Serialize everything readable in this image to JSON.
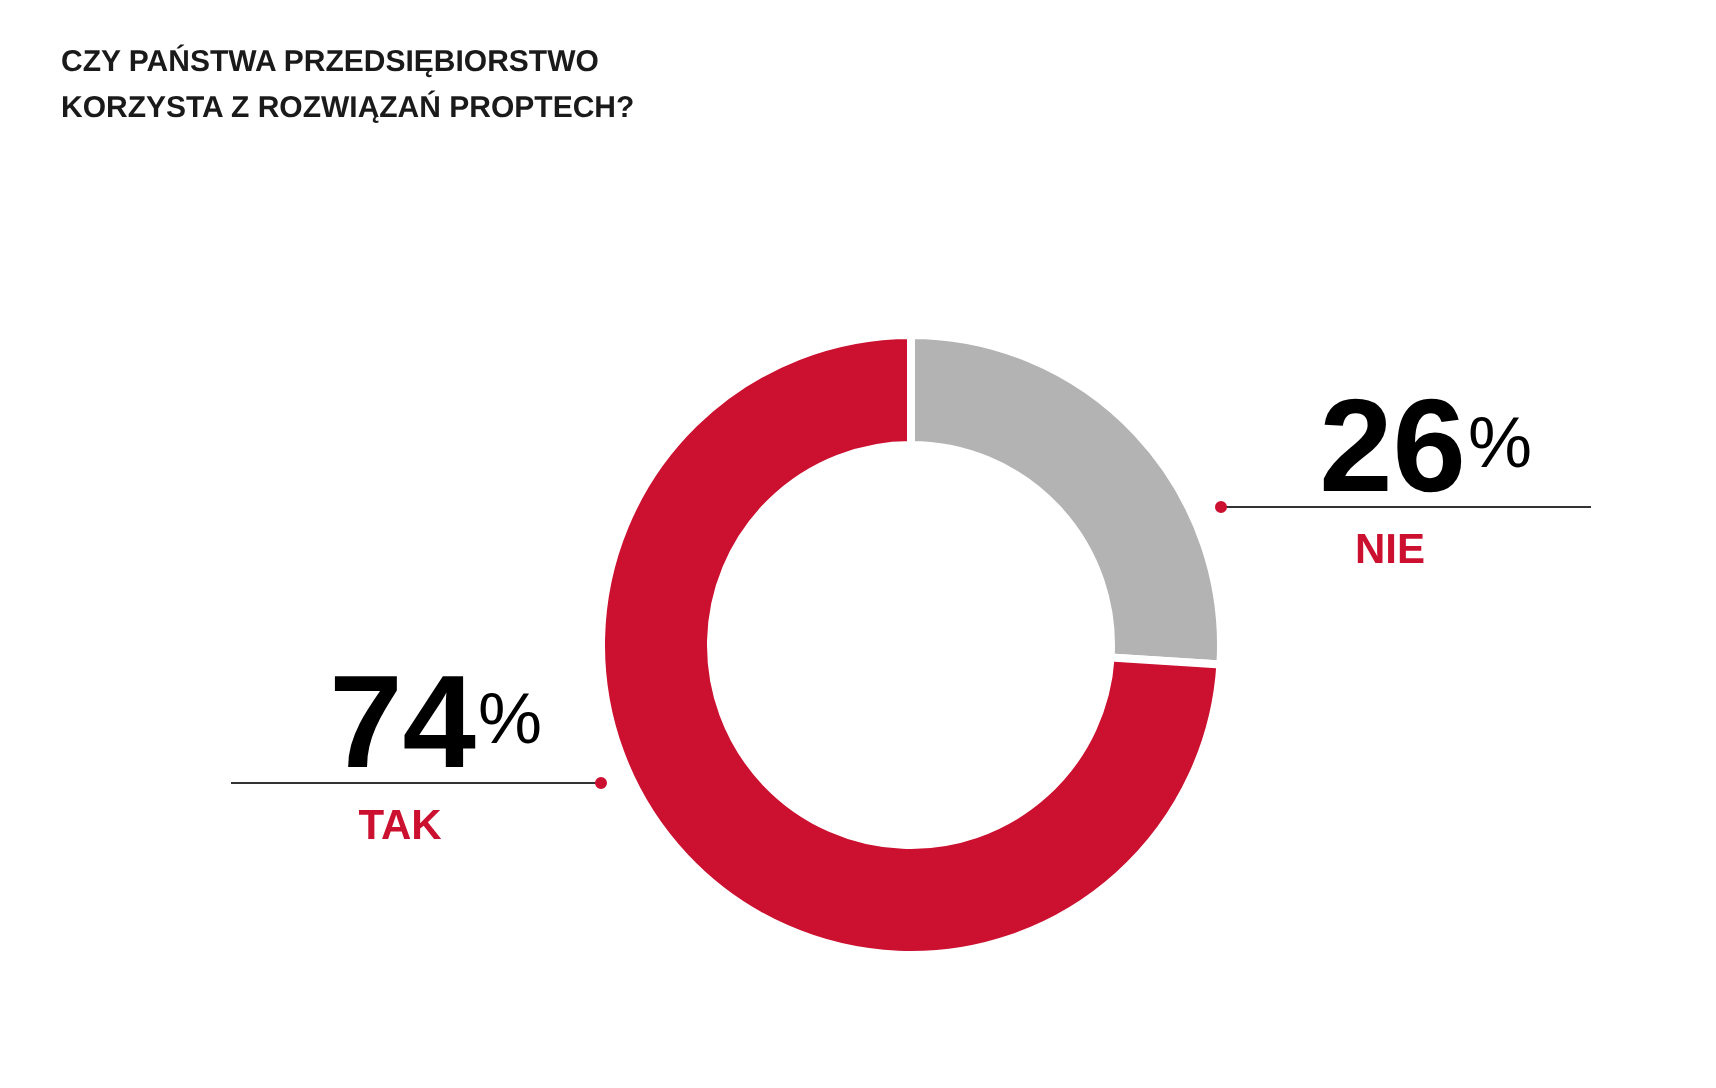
{
  "chart_data": {
    "type": "donut",
    "title": "CZY PAŃSTWA PRZEDSIĘBIORSTWO\nKORZYSTA Z ROZWIĄZAŃ PROPTECH?",
    "categories": [
      "NIE",
      "TAK"
    ],
    "values": [
      26,
      74
    ],
    "colors": [
      "#b3b3b3",
      "#cc1030"
    ],
    "value_labels": [
      "26%",
      "74%"
    ]
  }
}
